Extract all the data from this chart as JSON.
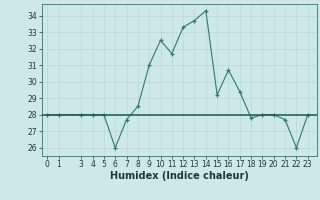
{
  "x": [
    0,
    1,
    3,
    4,
    5,
    6,
    7,
    8,
    9,
    10,
    11,
    12,
    13,
    14,
    15,
    16,
    17,
    18,
    19,
    20,
    21,
    22,
    23
  ],
  "y": [
    28,
    28,
    28,
    28,
    28,
    26,
    27.7,
    28.5,
    31,
    32.5,
    31.7,
    33.3,
    33.7,
    34.3,
    29.2,
    30.7,
    29.4,
    27.8,
    28,
    28,
    27.7,
    26,
    28
  ],
  "hline_y": 28,
  "ylim": [
    25.5,
    34.7
  ],
  "yticks": [
    26,
    27,
    28,
    29,
    30,
    31,
    32,
    33,
    34
  ],
  "xticks": [
    0,
    1,
    3,
    4,
    5,
    6,
    7,
    8,
    9,
    10,
    11,
    12,
    13,
    14,
    15,
    16,
    17,
    18,
    19,
    20,
    21,
    22,
    23
  ],
  "xlim": [
    -0.5,
    23.8
  ],
  "xlabel": "Humidex (Indice chaleur)",
  "line_color": "#2d7a6e",
  "hline_color": "#1a5a50",
  "bg_color": "#cde8e8",
  "grid_color": "#b8d8d8",
  "tick_fontsize": 5.5,
  "label_fontsize": 7.0
}
